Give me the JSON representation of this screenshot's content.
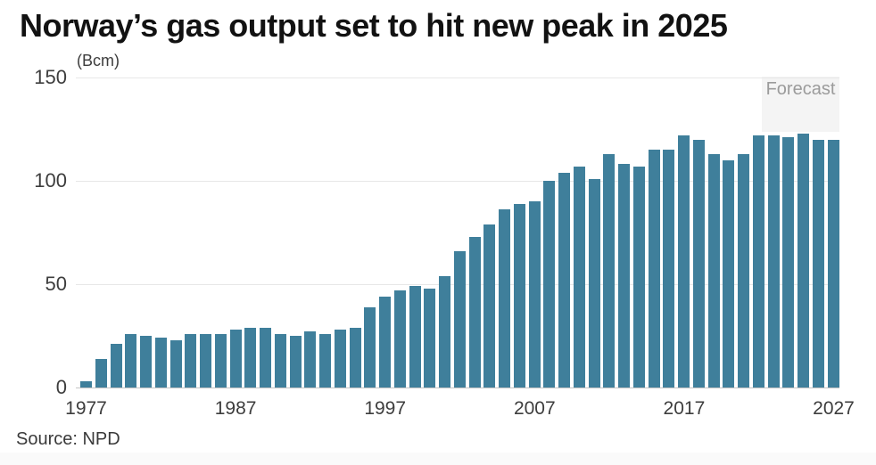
{
  "title": "Norway’s gas output set to hit new peak in 2025",
  "unit_label": "(Bcm)",
  "source": "Source: NPD",
  "forecast_label": "Forecast",
  "colors": {
    "bar": "#3f7f9b",
    "forecast_box": "#f4f4f4",
    "forecast_text": "#9b9b9b",
    "gridline": "#e7e7e7",
    "axis_line": "#c4c4c4",
    "tick_text": "#3d3d3d",
    "title_text": "#121212"
  },
  "chart_data": {
    "type": "bar",
    "title": "Norway’s gas output set to hit new peak in 2025",
    "ylabel": "(Bcm)",
    "xlabel": "",
    "ylim": [
      0,
      150
    ],
    "yticks": [
      0,
      50,
      100,
      150
    ],
    "xticks": [
      1977,
      1987,
      1997,
      2007,
      2017,
      2027
    ],
    "grid": true,
    "legend_position": "none",
    "annotations": [
      "Forecast"
    ],
    "forecast_start_year": 2023,
    "x": [
      1977,
      1978,
      1979,
      1980,
      1981,
      1982,
      1983,
      1984,
      1985,
      1986,
      1987,
      1988,
      1989,
      1990,
      1991,
      1992,
      1993,
      1994,
      1995,
      1996,
      1997,
      1998,
      1999,
      2000,
      2001,
      2002,
      2003,
      2004,
      2005,
      2006,
      2007,
      2008,
      2009,
      2010,
      2011,
      2012,
      2013,
      2014,
      2015,
      2016,
      2017,
      2018,
      2019,
      2020,
      2021,
      2022,
      2023,
      2024,
      2025,
      2026,
      2027
    ],
    "values": [
      3,
      14,
      21,
      26,
      25,
      24,
      23,
      26,
      26,
      26,
      28,
      29,
      29,
      26,
      25,
      27,
      26,
      28,
      29,
      39,
      44,
      47,
      49,
      48,
      54,
      66,
      73,
      79,
      86,
      89,
      90,
      100,
      104,
      107,
      101,
      113,
      108,
      107,
      115,
      115,
      122,
      120,
      113,
      110,
      113,
      122,
      122,
      121,
      123,
      120,
      120
    ]
  }
}
